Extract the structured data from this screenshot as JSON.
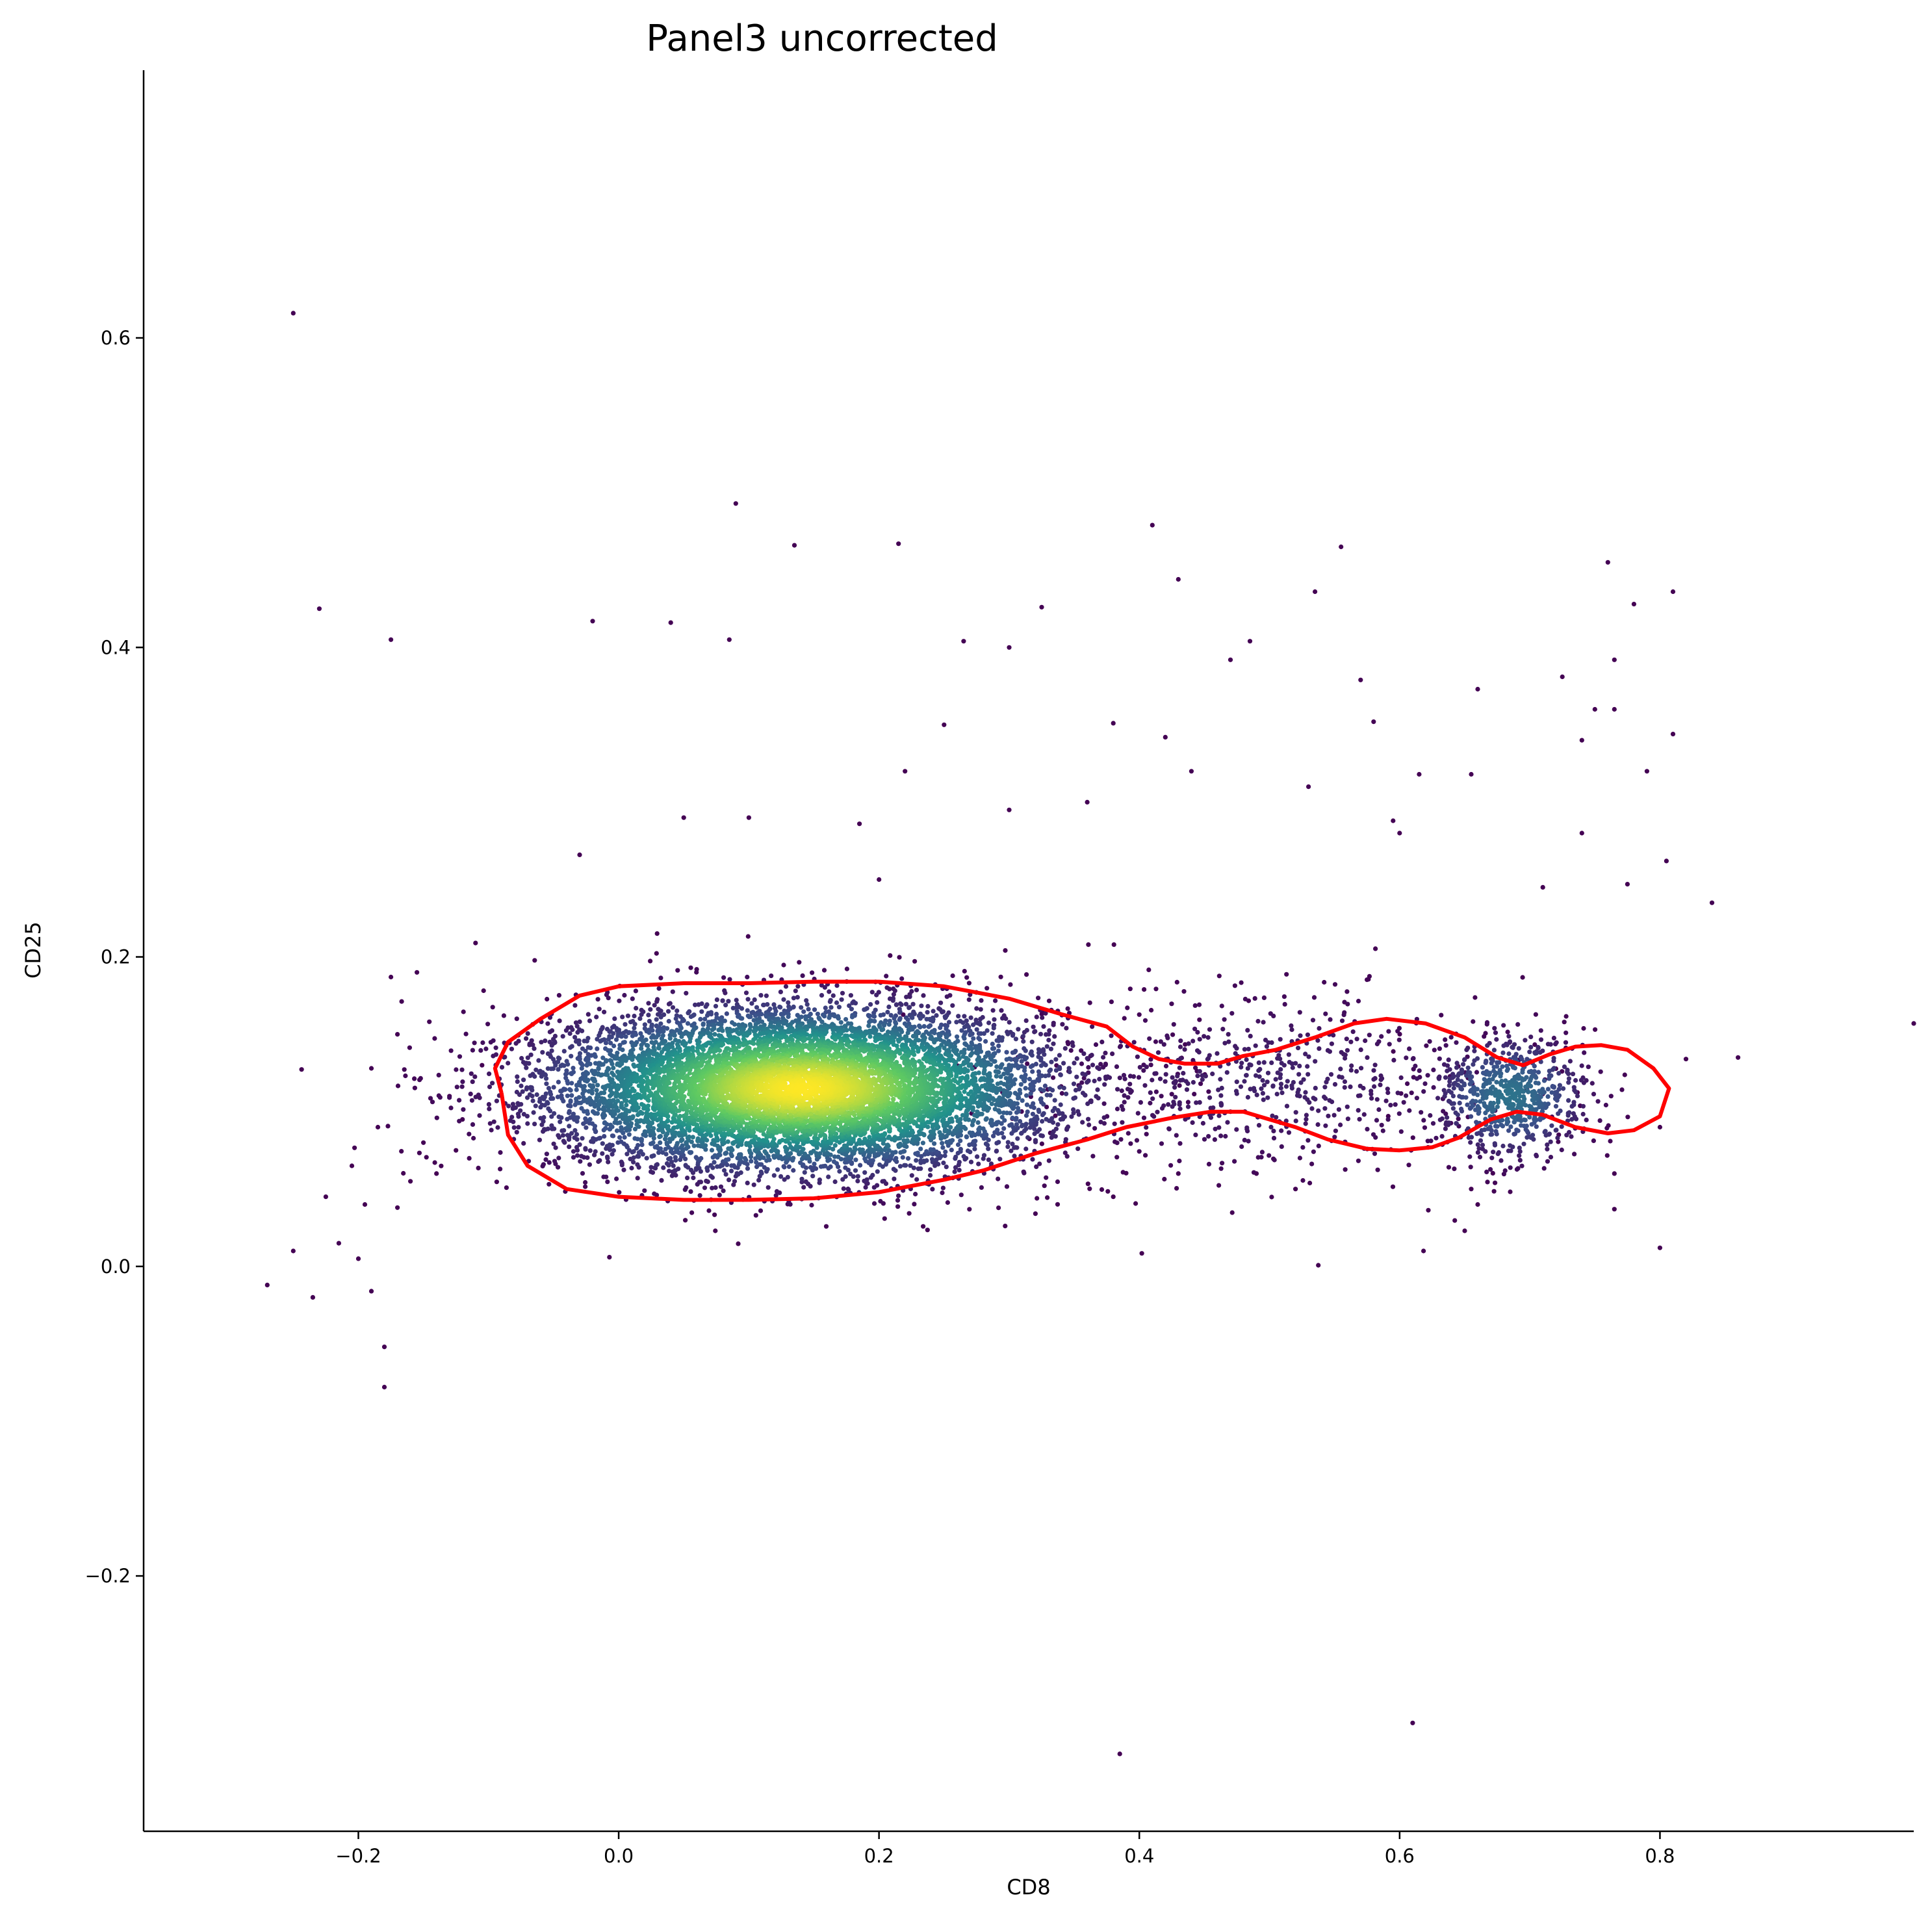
{
  "chart_data": {
    "type": "scatter",
    "title": "Panel3 uncorrected",
    "xlabel": "CD8",
    "ylabel": "CD25",
    "xlim": [
      -0.365,
      0.995
    ],
    "ylim": [
      -0.365,
      0.773
    ],
    "xticks": [
      -0.2,
      0.0,
      0.2,
      0.4,
      0.6,
      0.8
    ],
    "yticks": [
      -0.2,
      0.0,
      0.2,
      0.4,
      0.6
    ],
    "xtick_labels": [
      "−0.2",
      "0.0",
      "0.2",
      "0.4",
      "0.6",
      "0.8"
    ],
    "ytick_labels": [
      "−0.2",
      "0.0",
      "0.2",
      "0.4",
      "0.6"
    ],
    "grid": false,
    "spines": "left-bottom",
    "colormap": [
      "#440154",
      "#3b528b",
      "#21918c",
      "#5ec962",
      "#fde725"
    ],
    "contour_color": "#ff0000",
    "clusters": [
      {
        "cx": 0.14,
        "cy": 0.115,
        "sx": 0.095,
        "sy": 0.026,
        "n": 9000
      },
      {
        "cx": 0.685,
        "cy": 0.11,
        "sx": 0.03,
        "sy": 0.02,
        "n": 700
      },
      {
        "cx": 0.5,
        "cy": 0.12,
        "sx": 0.09,
        "sy": 0.03,
        "n": 600
      }
    ],
    "outliers": [
      [
        -0.25,
        0.616
      ],
      [
        -0.23,
        0.425
      ],
      [
        -0.175,
        0.405
      ],
      [
        0.09,
        0.493
      ],
      [
        0.135,
        0.466
      ],
      [
        0.215,
        0.467
      ],
      [
        0.41,
        0.479
      ],
      [
        0.555,
        0.465
      ],
      [
        0.76,
        0.455
      ],
      [
        0.81,
        0.436
      ],
      [
        0.43,
        0.444
      ],
      [
        0.535,
        0.436
      ],
      [
        0.325,
        0.426
      ],
      [
        -0.02,
        0.417
      ],
      [
        0.04,
        0.416
      ],
      [
        0.085,
        0.405
      ],
      [
        0.265,
        0.404
      ],
      [
        0.3,
        0.4
      ],
      [
        0.485,
        0.404
      ],
      [
        0.47,
        0.392
      ],
      [
        0.78,
        0.428
      ],
      [
        0.725,
        0.381
      ],
      [
        0.765,
        0.392
      ],
      [
        0.57,
        0.379
      ],
      [
        0.66,
        0.373
      ],
      [
        0.25,
        0.35
      ],
      [
        0.38,
        0.351
      ],
      [
        0.58,
        0.352
      ],
      [
        0.765,
        0.36
      ],
      [
        0.75,
        0.36
      ],
      [
        0.81,
        0.344
      ],
      [
        0.74,
        0.34
      ],
      [
        0.42,
        0.342
      ],
      [
        0.615,
        0.318
      ],
      [
        0.655,
        0.318
      ],
      [
        0.53,
        0.31
      ],
      [
        0.79,
        0.32
      ],
      [
        0.595,
        0.288
      ],
      [
        0.6,
        0.28
      ],
      [
        0.185,
        0.286
      ],
      [
        0.1,
        0.29
      ],
      [
        0.3,
        0.295
      ],
      [
        0.36,
        0.3
      ],
      [
        0.44,
        0.32
      ],
      [
        0.22,
        0.32
      ],
      [
        -0.03,
        0.266
      ],
      [
        0.05,
        0.29
      ],
      [
        -0.11,
        0.209
      ],
      [
        -0.155,
        0.19
      ],
      [
        0.84,
        0.235
      ],
      [
        0.805,
        0.262
      ],
      [
        0.775,
        0.247
      ],
      [
        0.71,
        0.245
      ],
      [
        0.74,
        0.28
      ],
      [
        0.2,
        0.25
      ],
      [
        0.385,
        -0.315
      ],
      [
        0.61,
        -0.295
      ],
      [
        -0.18,
        -0.078
      ],
      [
        -0.18,
        -0.052
      ],
      [
        -0.27,
        -0.012
      ],
      [
        -0.235,
        -0.02
      ],
      [
        -0.19,
        -0.016
      ],
      [
        -0.2,
        0.005
      ],
      [
        -0.215,
        0.015
      ],
      [
        -0.25,
        0.01
      ],
      [
        -0.225,
        0.045
      ],
      [
        -0.195,
        0.04
      ],
      [
        -0.17,
        0.038
      ],
      [
        -0.205,
        0.065
      ],
      [
        -0.16,
        0.055
      ],
      [
        -0.14,
        0.06
      ],
      [
        -0.15,
        0.08
      ],
      [
        -0.12,
        0.095
      ],
      [
        -0.125,
        0.075
      ],
      [
        -0.185,
        0.09
      ],
      [
        -0.105,
        0.13
      ],
      [
        -0.17,
        0.15
      ],
      [
        -0.19,
        0.128
      ],
      [
        -0.175,
        0.187
      ],
      [
        -0.13,
        0.11
      ],
      [
        0.995,
        0.157
      ],
      [
        0.86,
        0.135
      ],
      [
        0.82,
        0.134
      ],
      [
        0.8,
        0.09
      ],
      [
        0.8,
        0.012
      ],
      [
        0.765,
        0.037
      ],
      [
        0.765,
        0.06
      ],
      [
        0.66,
        0.04
      ],
      [
        0.65,
        0.023
      ],
      [
        0.655,
        0.05
      ],
      [
        0.38,
        0.045
      ],
      [
        0.52,
        0.05
      ],
      [
        0.49,
        0.06
      ],
      [
        0.47,
        0.1
      ],
      [
        0.43,
        0.06
      ]
    ],
    "contour": [
      [
        -0.09,
        0.112
      ],
      [
        -0.095,
        0.128
      ],
      [
        -0.085,
        0.145
      ],
      [
        -0.06,
        0.16
      ],
      [
        -0.03,
        0.175
      ],
      [
        0.0,
        0.181
      ],
      [
        0.05,
        0.183
      ],
      [
        0.1,
        0.183
      ],
      [
        0.15,
        0.184
      ],
      [
        0.2,
        0.184
      ],
      [
        0.25,
        0.181
      ],
      [
        0.3,
        0.173
      ],
      [
        0.34,
        0.163
      ],
      [
        0.375,
        0.155
      ],
      [
        0.395,
        0.142
      ],
      [
        0.415,
        0.134
      ],
      [
        0.435,
        0.131
      ],
      [
        0.46,
        0.131
      ],
      [
        0.48,
        0.136
      ],
      [
        0.505,
        0.14
      ],
      [
        0.535,
        0.148
      ],
      [
        0.565,
        0.157
      ],
      [
        0.59,
        0.16
      ],
      [
        0.62,
        0.157
      ],
      [
        0.65,
        0.148
      ],
      [
        0.675,
        0.135
      ],
      [
        0.695,
        0.13
      ],
      [
        0.715,
        0.137
      ],
      [
        0.735,
        0.142
      ],
      [
        0.755,
        0.143
      ],
      [
        0.775,
        0.14
      ],
      [
        0.795,
        0.128
      ],
      [
        0.807,
        0.115
      ],
      [
        0.8,
        0.097
      ],
      [
        0.78,
        0.088
      ],
      [
        0.76,
        0.086
      ],
      [
        0.735,
        0.09
      ],
      [
        0.71,
        0.098
      ],
      [
        0.69,
        0.1
      ],
      [
        0.67,
        0.095
      ],
      [
        0.645,
        0.083
      ],
      [
        0.625,
        0.077
      ],
      [
        0.6,
        0.075
      ],
      [
        0.575,
        0.076
      ],
      [
        0.545,
        0.082
      ],
      [
        0.52,
        0.09
      ],
      [
        0.5,
        0.095
      ],
      [
        0.48,
        0.1
      ],
      [
        0.455,
        0.1
      ],
      [
        0.425,
        0.096
      ],
      [
        0.39,
        0.09
      ],
      [
        0.36,
        0.082
      ],
      [
        0.32,
        0.073
      ],
      [
        0.28,
        0.062
      ],
      [
        0.25,
        0.056
      ],
      [
        0.2,
        0.048
      ],
      [
        0.15,
        0.044
      ],
      [
        0.1,
        0.043
      ],
      [
        0.05,
        0.043
      ],
      [
        0.0,
        0.045
      ],
      [
        -0.04,
        0.05
      ],
      [
        -0.07,
        0.065
      ],
      [
        -0.085,
        0.085
      ],
      [
        -0.09,
        0.112
      ]
    ]
  }
}
